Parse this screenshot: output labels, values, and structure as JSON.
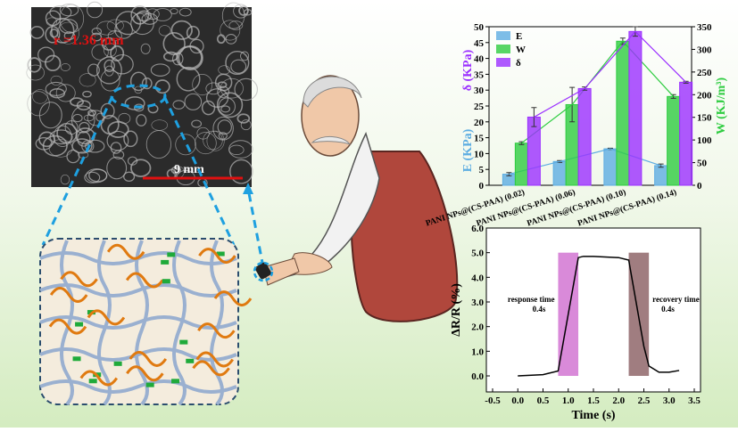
{
  "figure": {
    "sem_radius_label": "r =1.36 mm",
    "sem_scale_label": "9 mm"
  },
  "chart_data": [
    {
      "type": "bar",
      "categories": [
        "PANI NPs@(CS-PAA) (0.02)",
        "PANI NPs@(CS-PAA) (0.06)",
        "PANI NPs@(CS-PAA) (0.10)",
        "PANI NPs@(CS-PAA) (0.14)"
      ],
      "series": [
        {
          "name": "E",
          "color": "#5dade2",
          "values": [
            3.5,
            7.5,
            11.5,
            6.2
          ],
          "errors": [
            0.5,
            0.3,
            0.2,
            0.5
          ]
        },
        {
          "name": "W",
          "color": "#2ecc40",
          "axis": "y2",
          "values": [
            93,
            178,
            318,
            196
          ],
          "errors": [
            3,
            38,
            7,
            4
          ]
        },
        {
          "name": "δ",
          "color": "#9b30ff",
          "values": [
            21.5,
            30.5,
            48.5,
            32.5
          ],
          "errors": [
            3,
            0.5,
            1.5,
            0.3
          ]
        }
      ],
      "ylabels": [
        "E (KPa)",
        "δ (KPa)"
      ],
      "y2label": "W (KJ/m³)",
      "ylim": [
        0,
        50
      ],
      "yticks": [
        0,
        5,
        10,
        15,
        20,
        25,
        30,
        35,
        40,
        45,
        50
      ],
      "y2lim": [
        0,
        350
      ],
      "y2ticks": [
        0,
        50,
        100,
        150,
        200,
        250,
        300,
        350
      ],
      "legend": "upper left"
    },
    {
      "type": "line",
      "x": [
        0,
        0.5,
        0.8,
        1.2,
        1.3,
        1.5,
        2.0,
        2.2,
        2.5,
        2.6,
        2.8,
        3.0,
        3.2
      ],
      "values": [
        0,
        0.05,
        0.2,
        4.8,
        4.85,
        4.85,
        4.8,
        4.7,
        1.2,
        0.4,
        0.15,
        0.15,
        0.22
      ],
      "color": "#000000",
      "xlabel": "Time (s)",
      "ylabel": "ΔR/R (%)",
      "xlim": [
        -0.5,
        3.5
      ],
      "xticks": [
        -0.5,
        {
          "value": 0,
          "label": "0.0"
        },
        0.5,
        {
          "value": 1,
          "label": "1.0"
        },
        1.5,
        {
          "value": 2,
          "label": "2.0"
        },
        2.5,
        {
          "value": 3,
          "label": "3.0"
        },
        3.5
      ],
      "ylim": [
        -0.65,
        6
      ],
      "yticks": [
        {
          "value": 0,
          "label": "0.0"
        },
        {
          "value": 1,
          "label": "1.0"
        },
        {
          "value": 2,
          "label": "2.0"
        },
        {
          "value": 3,
          "label": "3.0"
        },
        {
          "value": 4,
          "label": "4.0"
        },
        {
          "value": 5,
          "label": "5.0"
        },
        {
          "value": 6,
          "label": "6.0"
        }
      ],
      "spans": [
        {
          "x": [
            0.8,
            1.2
          ],
          "y": [
            0,
            5
          ],
          "color": "#d98ad9",
          "label": "response time",
          "sublabel": "0.4s"
        },
        {
          "x": [
            2.2,
            2.6
          ],
          "y": [
            0,
            5
          ],
          "color": "#a07d80",
          "label": "recovery time",
          "sublabel": "0.4s"
        }
      ]
    }
  ]
}
